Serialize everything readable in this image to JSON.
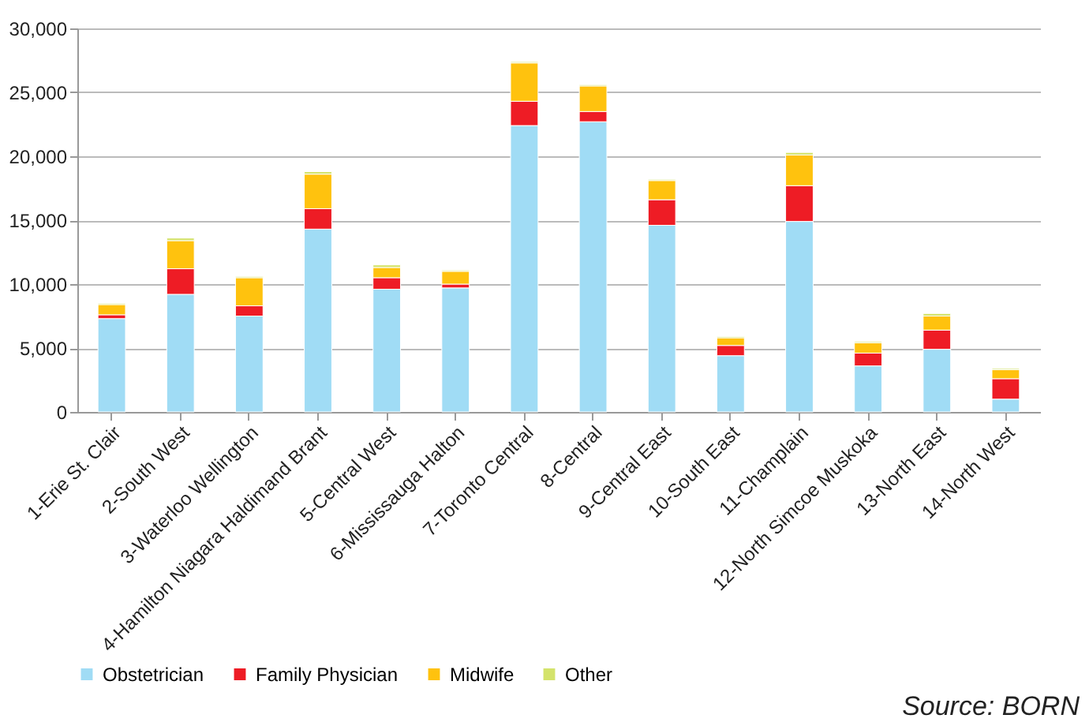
{
  "chart_data": {
    "type": "bar",
    "stacked": true,
    "categories": [
      "1-Erie St. Clair",
      "2-South West",
      "3-Waterloo Wellington",
      "4-Hamilton Niagara Haldimand Brant",
      "5-Central West",
      "6-Mississauga Halton",
      "7-Toronto Central",
      "8-Central",
      "9-Central East",
      "10-South East",
      "11-Champlain",
      "12-North Simcoe Muskoka",
      "13-North East",
      "14-North West"
    ],
    "series": [
      {
        "name": "Obstetrician",
        "color": "#a0dcf5",
        "values": [
          7300,
          9200,
          7500,
          14300,
          9600,
          9700,
          22400,
          22700,
          14600,
          4400,
          14900,
          3600,
          4900,
          1000
        ]
      },
      {
        "name": "Family Physician",
        "color": "#ee1c25",
        "values": [
          300,
          2000,
          800,
          1600,
          900,
          300,
          1900,
          800,
          2000,
          800,
          2800,
          1000,
          1500,
          1600
        ]
      },
      {
        "name": "Midwife",
        "color": "#ffc20e",
        "values": [
          800,
          2200,
          2200,
          2700,
          800,
          1000,
          3000,
          2000,
          1500,
          600,
          2400,
          800,
          1100,
          700
        ]
      },
      {
        "name": "Other",
        "color": "#d4e36b",
        "values": [
          100,
          200,
          100,
          200,
          200,
          100,
          100,
          100,
          100,
          100,
          200,
          100,
          200,
          100
        ]
      }
    ],
    "ylim": [
      0,
      30000
    ],
    "yticks": [
      0,
      {
        "value": 5000,
        "label": "5,000"
      },
      {
        "value": 10000,
        "label": "10,000"
      },
      {
        "value": 15000,
        "label": "15,000"
      },
      {
        "value": 20000,
        "label": "20,000"
      },
      {
        "value": 25000,
        "label": "25,000"
      },
      {
        "value": 30000,
        "label": "30,000"
      }
    ],
    "grid": "y",
    "legend": "bottom",
    "annotations": [
      "Source: BORN"
    ]
  }
}
